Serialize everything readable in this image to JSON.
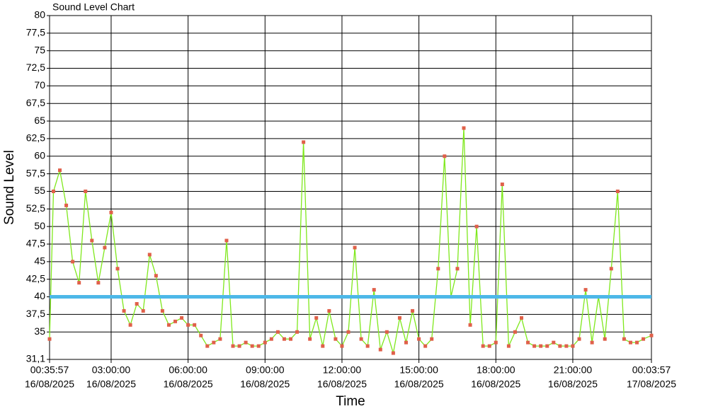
{
  "chart_data": {
    "type": "line",
    "title": "Sound Level Chart",
    "y_label": "Sound Level",
    "x_label": "Time",
    "ylim": [
      31.1,
      80
    ],
    "yticks": [
      {
        "value": 31.1,
        "label": "31,1"
      },
      35,
      {
        "value": 37.5,
        "label": "37,5"
      },
      40,
      {
        "value": 42.5,
        "label": "42,5"
      },
      45,
      {
        "value": 47.5,
        "label": "47,5"
      },
      50,
      {
        "value": 52.5,
        "label": "52,5"
      },
      55,
      {
        "value": 57.5,
        "label": "57,5"
      },
      60,
      {
        "value": 62.5,
        "label": "62,5"
      },
      65,
      {
        "value": 67.5,
        "label": "67,5"
      },
      70,
      {
        "value": 72.5,
        "label": "72,5"
      },
      75,
      {
        "value": 77.5,
        "label": "77,5"
      },
      80
    ],
    "xlim": [
      "2025-08-16T00:35:57",
      "2025-08-17T00:03:57"
    ],
    "xticks": [
      {
        "value": "2025-08-16T00:35:57",
        "label": [
          "00:35:57",
          "16/08/2025"
        ]
      },
      {
        "value": "2025-08-16T03:00:00",
        "label": [
          "03:00:00",
          "16/08/2025"
        ]
      },
      {
        "value": "2025-08-16T06:00:00",
        "label": [
          "06:00:00",
          "16/08/2025"
        ]
      },
      {
        "value": "2025-08-16T09:00:00",
        "label": [
          "09:00:00",
          "16/08/2025"
        ]
      },
      {
        "value": "2025-08-16T12:00:00",
        "label": [
          "12:00:00",
          "16/08/2025"
        ]
      },
      {
        "value": "2025-08-16T15:00:00",
        "label": [
          "15:00:00",
          "16/08/2025"
        ]
      },
      {
        "value": "2025-08-16T18:00:00",
        "label": [
          "18:00:00",
          "16/08/2025"
        ]
      },
      {
        "value": "2025-08-16T21:00:00",
        "label": [
          "21:00:00",
          "16/08/2025"
        ]
      },
      {
        "value": "2025-08-17T00:03:57",
        "label": [
          "00:03:57",
          "17/08/2025"
        ]
      }
    ],
    "grid": true,
    "reference_line": {
      "value": 40,
      "color": "#4db8e8"
    },
    "x": [
      "2025-08-16T00:35:57",
      "2025-08-16T00:45",
      "2025-08-16T01:00",
      "2025-08-16T01:15",
      "2025-08-16T01:30",
      "2025-08-16T01:45",
      "2025-08-16T02:00",
      "2025-08-16T02:15",
      "2025-08-16T02:30",
      "2025-08-16T02:45",
      "2025-08-16T03:00",
      "2025-08-16T03:15",
      "2025-08-16T03:30",
      "2025-08-16T03:45",
      "2025-08-16T04:00",
      "2025-08-16T04:15",
      "2025-08-16T04:30",
      "2025-08-16T04:45",
      "2025-08-16T05:00",
      "2025-08-16T05:15",
      "2025-08-16T05:30",
      "2025-08-16T05:45",
      "2025-08-16T06:00",
      "2025-08-16T06:15",
      "2025-08-16T06:30",
      "2025-08-16T06:45",
      "2025-08-16T07:00",
      "2025-08-16T07:15",
      "2025-08-16T07:30",
      "2025-08-16T07:45",
      "2025-08-16T08:00",
      "2025-08-16T08:15",
      "2025-08-16T08:30",
      "2025-08-16T08:45",
      "2025-08-16T09:00",
      "2025-08-16T09:15",
      "2025-08-16T09:30",
      "2025-08-16T09:45",
      "2025-08-16T10:00",
      "2025-08-16T10:15",
      "2025-08-16T10:30",
      "2025-08-16T10:45",
      "2025-08-16T11:00",
      "2025-08-16T11:15",
      "2025-08-16T11:30",
      "2025-08-16T11:45",
      "2025-08-16T12:00",
      "2025-08-16T12:15",
      "2025-08-16T12:30",
      "2025-08-16T12:45",
      "2025-08-16T13:00",
      "2025-08-16T13:15",
      "2025-08-16T13:30",
      "2025-08-16T13:45",
      "2025-08-16T14:00",
      "2025-08-16T14:15",
      "2025-08-16T14:30",
      "2025-08-16T14:45",
      "2025-08-16T15:00",
      "2025-08-16T15:15",
      "2025-08-16T15:30",
      "2025-08-16T15:45",
      "2025-08-16T16:00",
      "2025-08-16T16:15",
      "2025-08-16T16:30",
      "2025-08-16T16:45",
      "2025-08-16T17:00",
      "2025-08-16T17:15",
      "2025-08-16T17:30",
      "2025-08-16T17:45",
      "2025-08-16T18:00",
      "2025-08-16T18:15",
      "2025-08-16T18:30",
      "2025-08-16T18:45",
      "2025-08-16T19:00",
      "2025-08-16T19:15",
      "2025-08-16T19:30",
      "2025-08-16T19:45",
      "2025-08-16T20:00",
      "2025-08-16T20:15",
      "2025-08-16T20:30",
      "2025-08-16T20:45",
      "2025-08-16T21:00",
      "2025-08-16T21:15",
      "2025-08-16T21:30",
      "2025-08-16T21:45",
      "2025-08-16T22:00",
      "2025-08-16T22:15",
      "2025-08-16T22:30",
      "2025-08-16T22:45",
      "2025-08-16T23:00",
      "2025-08-16T23:15",
      "2025-08-16T23:30",
      "2025-08-16T23:45",
      "2025-08-17T00:03:57"
    ],
    "series": [
      {
        "name": "Sound Level",
        "color": "#7fe81c",
        "marker_color": "#e0604a",
        "values": [
          34,
          55,
          58,
          53,
          45,
          42,
          55,
          48,
          42,
          47,
          52,
          44,
          38,
          36,
          39,
          38,
          46,
          43,
          38,
          36,
          36.5,
          37,
          36,
          36,
          34.5,
          33,
          33.5,
          34,
          48,
          33,
          33,
          33.5,
          33,
          33,
          33.5,
          34,
          35,
          34,
          34,
          35,
          62,
          34,
          37,
          33,
          38,
          34,
          33,
          35,
          47,
          34,
          33,
          41,
          32.5,
          35,
          32,
          37,
          33.5,
          38,
          34,
          33,
          34,
          44,
          60,
          40,
          44,
          64,
          36,
          50,
          33,
          33,
          33.5,
          56,
          33,
          35,
          37,
          33.5,
          33,
          33,
          33,
          33.5,
          33,
          33,
          33,
          34,
          41,
          33.5,
          40,
          34,
          44,
          55,
          34,
          33.5,
          33.5,
          34,
          34.5
        ]
      }
    ]
  }
}
